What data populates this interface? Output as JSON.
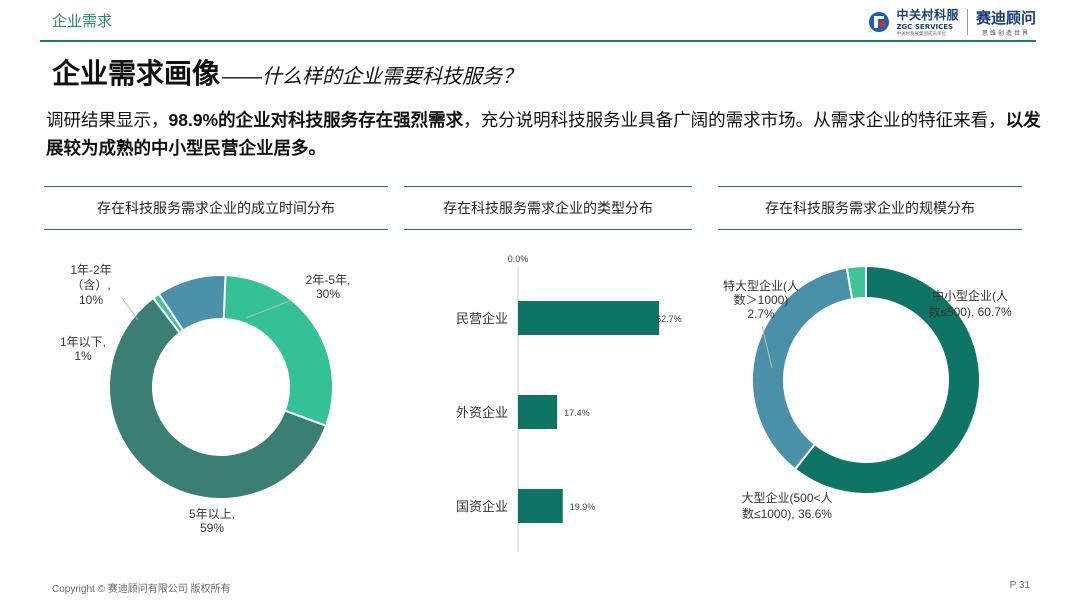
{
  "header": {
    "section_label": "企业需求",
    "logo_zgc_name": "中关村科服",
    "logo_zgc_en": "ZGC SERVICES",
    "logo_zgc_sub": "中关村发展集团成员单位",
    "logo_sd_name": "赛迪顾问",
    "logo_sd_slogan": "思维创造世界"
  },
  "title": {
    "main": "企业需求画像",
    "sub": "——什么样的企业需要科技服务？"
  },
  "intro": {
    "p1": "调研结果显示，",
    "b1": "98.9%的企业对科技服务存在强烈需求",
    "p2": "，充分说明科技服务业具备广阔的需求市场。从需求企业的特征来看，",
    "b2": "以发展较为成熟的中小型民营企业居多。"
  },
  "panels": {
    "left_title": "存在科技服务需求企业的成立时间分布",
    "middle_title": "存在科技服务需求企业的类型分布",
    "right_title": "存在科技服务需求企业的规模分布"
  },
  "colors": {
    "accent": "#1f7a66",
    "teal_dark": "#0e7466",
    "teal_mid": "#3a7e74",
    "mint": "#34c197",
    "steel": "#4a90a8",
    "light_mint": "#3fc49a"
  },
  "chart_data": [
    {
      "type": "pie",
      "variant": "donut",
      "title": "存在科技服务需求企业的成立时间分布",
      "slices": [
        {
          "label": "2年-5年,",
          "value_label": "30%",
          "value": 30,
          "color": "#34c197"
        },
        {
          "label": "5年以上,",
          "value_label": "59%",
          "value": 59,
          "color": "#3a7e74"
        },
        {
          "label": "1年以下,",
          "value_label": "1%",
          "value": 1,
          "color": "#3fc49a"
        },
        {
          "label": "1年-2年（含）,",
          "value_label": "10%",
          "value": 10,
          "color": "#4a90a8"
        }
      ],
      "label_lines": {
        "s0": [
          "2年-5年,",
          "30%"
        ],
        "s1": [
          "5年以上,",
          "59%"
        ],
        "s2": [
          "1年以下,",
          "1%"
        ],
        "s3": [
          "1年-2年",
          "（含）,",
          "10%"
        ]
      }
    },
    {
      "type": "bar",
      "orientation": "horizontal",
      "title": "存在科技服务需求企业的类型分布",
      "categories": [
        "民营企业",
        "外资企业",
        "国资企业"
      ],
      "values": [
        62.7,
        17.4,
        19.9
      ],
      "value_labels": [
        "62.7%",
        "17.4%",
        "19.9%"
      ],
      "axis_start_label": "0.0%",
      "color": "#0e7466"
    },
    {
      "type": "pie",
      "variant": "donut",
      "title": "存在科技服务需求企业的规模分布",
      "slices": [
        {
          "label": "中小型企业(人数≤500)",
          "value_label": "60.7%",
          "value": 60.7,
          "color": "#0e7466"
        },
        {
          "label": "大型企业(500<人数≤1000)",
          "value_label": "36.6%",
          "value": 36.6,
          "color": "#4a90a8"
        },
        {
          "label": "特大型企业(人数＞1000)",
          "value_label": "2.7%",
          "value": 2.7,
          "color": "#3fc49a"
        }
      ],
      "label_lines": {
        "s0": [
          "中小型企业(人",
          "数≤500), 60.7%"
        ],
        "s1": [
          "大型企业(500<人",
          "数≤1000), 36.6%"
        ],
        "s2": [
          "特大型企业(人",
          "数＞1000)",
          "2.7%"
        ]
      }
    }
  ],
  "footer": {
    "copyright": "Copyright © 赛迪顾问有限公司 版权所有",
    "page": "P 31"
  }
}
